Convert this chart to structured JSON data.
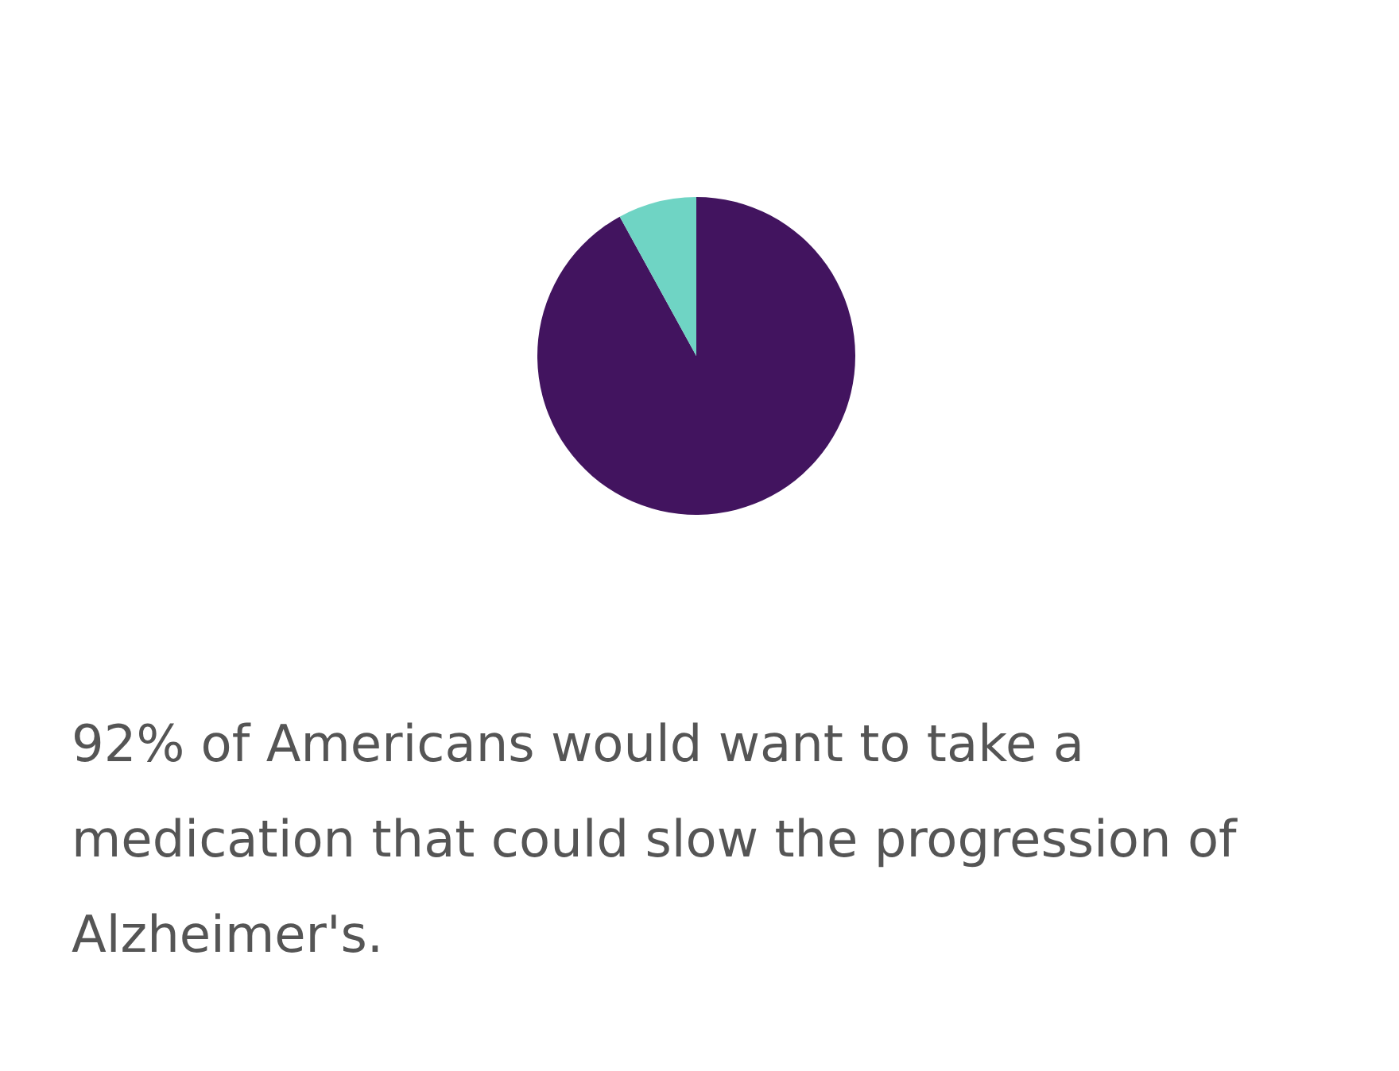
{
  "chart_data": {
    "type": "pie",
    "categories": [
      null,
      null
    ],
    "values": [
      92,
      8
    ],
    "colors": [
      "#42145f",
      "#6fd4c4"
    ],
    "annotations": [
      "92% of Americans would want to take a medication that could slow the progression of Alzheimer's."
    ]
  }
}
